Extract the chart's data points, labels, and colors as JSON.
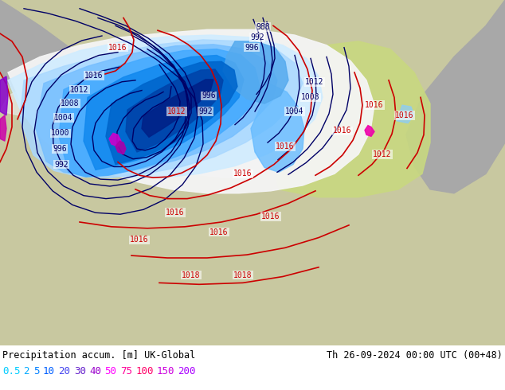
{
  "title_left": "Precipitation accum. [m] UK-Global",
  "title_right": "Th 26-09-2024 00:00 UTC (00+48)",
  "legend_values": [
    "0.5",
    "2",
    "5",
    "10",
    "20",
    "30",
    "40",
    "50",
    "75",
    "100",
    "150",
    "200"
  ],
  "legend_colors": [
    "#00ccff",
    "#00aaff",
    "#007fff",
    "#005fff",
    "#4444ee",
    "#6622cc",
    "#9900cc",
    "#ff00ff",
    "#ff0099",
    "#ff0066",
    "#cc00dd",
    "#aa00ff"
  ],
  "land_color": "#c8c8a0",
  "gray_bg": "#a8a8a8",
  "white_area": "#f0f0f0",
  "yellow_green": "#c8d880",
  "isobar_navy": "#000066",
  "isobar_red": "#cc0000",
  "precip_pale": "#c8e8ff",
  "precip_light": "#88ccff",
  "precip_med": "#44aaff",
  "precip_heavy": "#1166cc",
  "precip_vheavy": "#002288",
  "figsize": [
    6.34,
    4.9
  ],
  "dpi": 100
}
